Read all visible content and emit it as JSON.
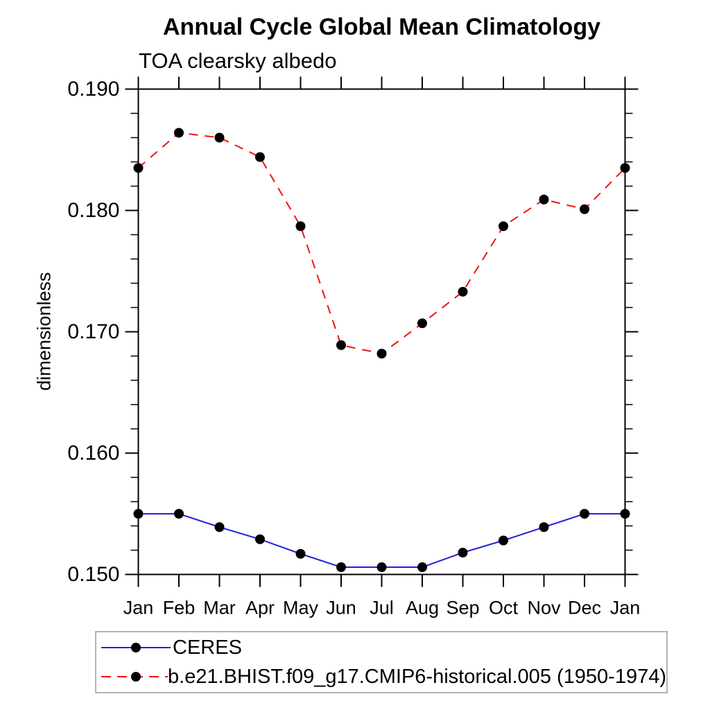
{
  "chart_data": {
    "type": "line",
    "title": "Annual Cycle Global Mean Climatology",
    "subtitle": "TOA clearsky albedo",
    "ylabel": "dimensionless",
    "xlabel": "",
    "categories": [
      "Jan",
      "Feb",
      "Mar",
      "Apr",
      "May",
      "Jun",
      "Jul",
      "Aug",
      "Sep",
      "Oct",
      "Nov",
      "Dec",
      "Jan"
    ],
    "series": [
      {
        "name": "CERES",
        "color": "#2222dd",
        "line_style": "solid",
        "marker": "circle",
        "marker_color": "#000000",
        "values": [
          0.155,
          0.155,
          0.1539,
          0.1529,
          0.1517,
          0.1506,
          0.1506,
          0.1506,
          0.1518,
          0.1528,
          0.1539,
          0.155,
          0.155
        ]
      },
      {
        "name": "b.e21.BHIST.f09_g17.CMIP6-historical.005 (1950-1974)",
        "color": "#ef1212",
        "line_style": "dashed",
        "marker": "circle",
        "marker_color": "#000000",
        "values": [
          0.1835,
          0.1864,
          0.186,
          0.1844,
          0.1787,
          0.1689,
          0.1682,
          0.1707,
          0.1733,
          0.1787,
          0.1809,
          0.1801,
          0.1835
        ]
      }
    ],
    "ylim": [
      0.15,
      0.19
    ],
    "y_major_step": 0.01,
    "y_minor_step": 0.002,
    "y_tick_labels": [
      "0.150",
      "0.160",
      "0.170",
      "0.180",
      "0.190"
    ],
    "grid": false,
    "legend_position": "bottom-left",
    "axis_color": "#000000"
  }
}
